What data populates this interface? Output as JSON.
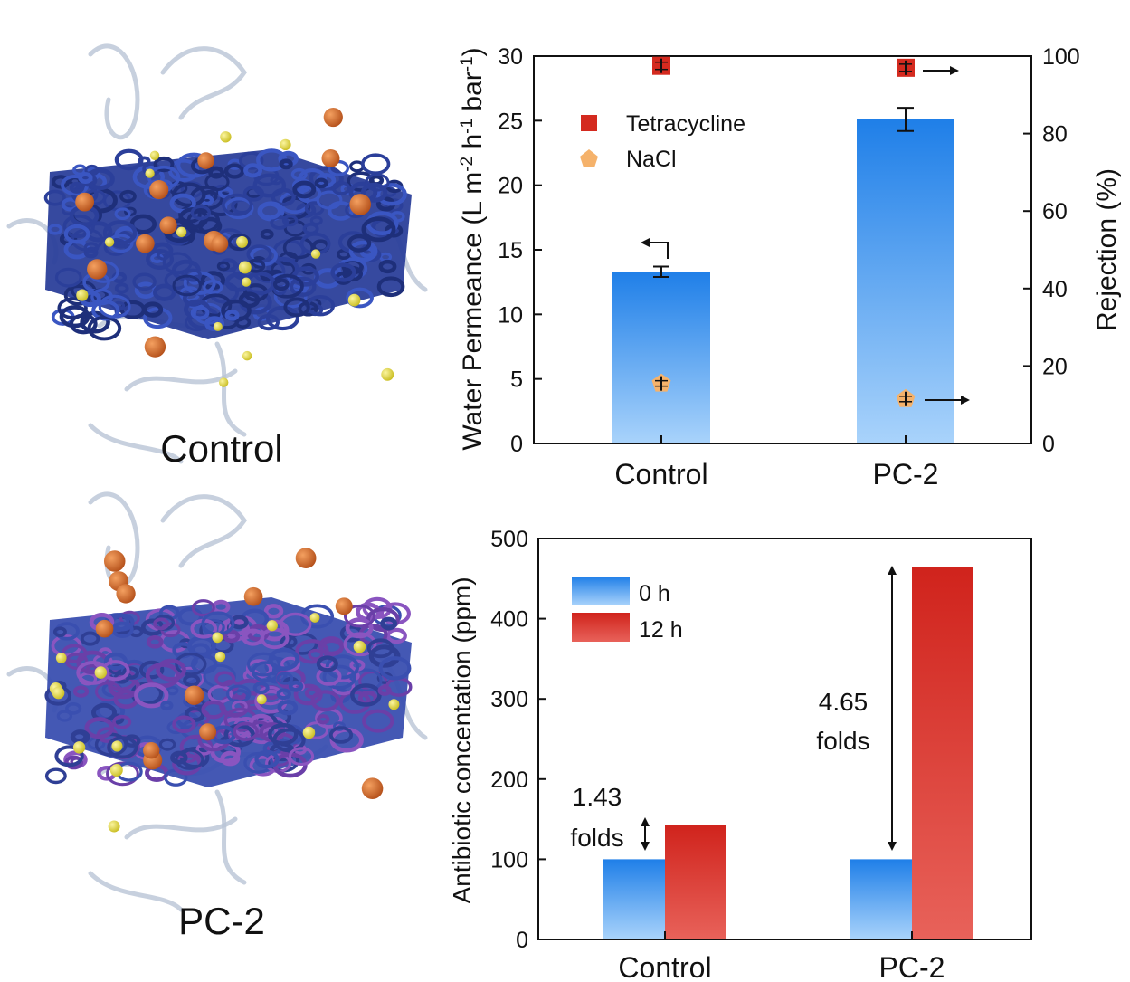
{
  "illustrations": [
    {
      "caption": "Control",
      "fiber_colors": [
        "#2b3f9a",
        "#3a56c2",
        "#1e2f7a"
      ]
    },
    {
      "caption": "PC-2",
      "fiber_colors": [
        "#3a4fb0",
        "#8a55c0",
        "#6a3fa8",
        "#2f3f95"
      ]
    }
  ],
  "colors": {
    "blue_bar_top": "#1f7fe8",
    "blue_bar_bottom": "#a9d3fb",
    "red_bar_top": "#d0231c",
    "red_bar_bottom": "#e8625a",
    "tetracycline_marker": "#d42a1f",
    "nacl_marker": "#f5b26b",
    "orange_particle": "#d86b20",
    "yellow_particle": "#e8df40"
  },
  "chart_data": [
    {
      "type": "bar",
      "categories": [
        "Control",
        "PC-2"
      ],
      "ylabel_left": "Water Permeance (L m-2 h-1 bar-1)",
      "ylabel_left_parts": [
        "Water Permeance (L m",
        "-2",
        " h",
        "-1",
        " bar",
        "-1",
        ")"
      ],
      "ylabel_right": "Rejection (%)",
      "ylim_left": [
        0,
        30
      ],
      "ylim_right": [
        0,
        100
      ],
      "yticks_left": [
        "0",
        "5",
        "10",
        "15",
        "20",
        "25",
        "30"
      ],
      "yticks_right": [
        "0",
        "20",
        "40",
        "60",
        "80",
        "100"
      ],
      "permeance": [
        13.3,
        25.1
      ],
      "permeance_error": [
        0.4,
        0.9
      ],
      "series": [
        {
          "name": "Tetracycline",
          "axis": "right",
          "marker": "square",
          "values": [
            97.5,
            97.0
          ]
        },
        {
          "name": "NaCl",
          "axis": "right",
          "marker": "pentagon",
          "values": [
            15.5,
            11.5
          ]
        }
      ],
      "legend_position": "top-left"
    },
    {
      "type": "bar",
      "categories": [
        "Control",
        "PC-2"
      ],
      "ylabel": "Antibiotic concentation (ppm)",
      "ylim": [
        0,
        500
      ],
      "yticks": [
        "0",
        "100",
        "200",
        "300",
        "400",
        "500"
      ],
      "series": [
        {
          "name": "0 h",
          "values": [
            100,
            100
          ]
        },
        {
          "name": "12 h",
          "values": [
            143,
            465
          ]
        }
      ],
      "annotations": [
        {
          "category": "Control",
          "lines": [
            "1.43",
            "folds"
          ]
        },
        {
          "category": "PC-2",
          "lines": [
            "4.65",
            "folds"
          ]
        }
      ],
      "legend_position": "top-left"
    }
  ]
}
